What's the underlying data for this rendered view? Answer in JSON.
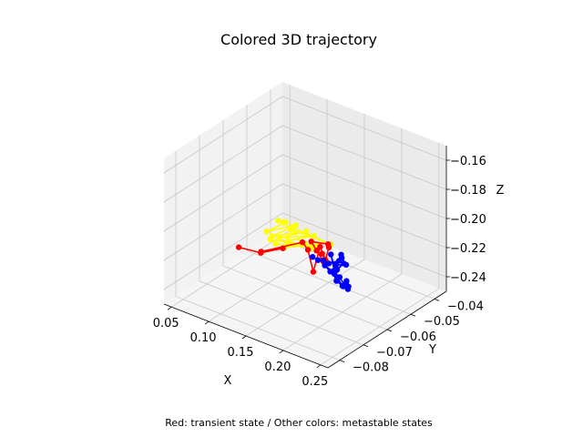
{
  "chart_data": {
    "type": "line-3d",
    "title": "Colored 3D trajectory",
    "caption": "Red: transient state / Other colors: metastable states",
    "xlabel": "X",
    "ylabel": "Y",
    "zlabel": "Z",
    "xlim": [
      0.04,
      0.26
    ],
    "ylim": [
      -0.085,
      -0.035
    ],
    "zlim": [
      -0.25,
      -0.15
    ],
    "xticks": [
      "0.05",
      "0.10",
      "0.15",
      "0.20",
      "0.25"
    ],
    "yticks": [
      "−0.08",
      "−0.07",
      "−0.06",
      "−0.05",
      "−0.04"
    ],
    "zticks": [
      "−0.24",
      "−0.22",
      "−0.20",
      "−0.18",
      "−0.16"
    ],
    "grid": true,
    "series": [
      {
        "color": "#ffff00",
        "points": [
          [
            0.05,
            -0.04,
            -0.238
          ],
          [
            0.07,
            -0.043,
            -0.232
          ],
          [
            0.06,
            -0.048,
            -0.235
          ],
          [
            0.09,
            -0.045,
            -0.228
          ],
          [
            0.08,
            -0.052,
            -0.23
          ],
          [
            0.11,
            -0.047,
            -0.226
          ],
          [
            0.1,
            -0.055,
            -0.224
          ],
          [
            0.13,
            -0.05,
            -0.222
          ],
          [
            0.12,
            -0.058,
            -0.219
          ],
          [
            0.14,
            -0.054,
            -0.224
          ],
          [
            0.15,
            -0.06,
            -0.213
          ],
          [
            0.13,
            -0.062,
            -0.217
          ],
          [
            0.16,
            -0.058,
            -0.214
          ],
          [
            0.11,
            -0.06,
            -0.221
          ],
          [
            0.09,
            -0.056,
            -0.226
          ],
          [
            0.12,
            -0.052,
            -0.228
          ],
          [
            0.1,
            -0.05,
            -0.222
          ],
          [
            0.14,
            -0.046,
            -0.23
          ],
          [
            0.08,
            -0.044,
            -0.234
          ],
          [
            0.06,
            -0.041,
            -0.236
          ]
        ]
      },
      {
        "color": "#ff0000",
        "points": [
          [
            0.08,
            -0.066,
            -0.223
          ],
          [
            0.1,
            -0.063,
            -0.226
          ],
          [
            0.12,
            -0.06,
            -0.222
          ],
          [
            0.11,
            -0.066,
            -0.22
          ],
          [
            0.14,
            -0.058,
            -0.216
          ],
          [
            0.16,
            -0.062,
            -0.213
          ],
          [
            0.18,
            -0.066,
            -0.22
          ],
          [
            0.17,
            -0.06,
            -0.211
          ],
          [
            0.19,
            -0.064,
            -0.212
          ],
          [
            0.15,
            -0.05,
            -0.226
          ],
          [
            0.13,
            -0.044,
            -0.234
          ],
          [
            0.12,
            -0.048,
            -0.23
          ],
          [
            0.14,
            -0.052,
            -0.228
          ],
          [
            0.2,
            -0.068,
            -0.207
          ],
          [
            0.21,
            -0.07,
            -0.203
          ],
          [
            0.16,
            -0.056,
            -0.222
          ]
        ]
      },
      {
        "color": "#0000ff",
        "points": [
          [
            0.16,
            -0.06,
            -0.22
          ],
          [
            0.18,
            -0.064,
            -0.214
          ],
          [
            0.2,
            -0.068,
            -0.206
          ],
          [
            0.22,
            -0.072,
            -0.2
          ],
          [
            0.24,
            -0.074,
            -0.192
          ],
          [
            0.23,
            -0.07,
            -0.194
          ],
          [
            0.25,
            -0.076,
            -0.186
          ],
          [
            0.24,
            -0.071,
            -0.198
          ],
          [
            0.22,
            -0.069,
            -0.204
          ],
          [
            0.21,
            -0.066,
            -0.21
          ],
          [
            0.19,
            -0.062,
            -0.222
          ],
          [
            0.17,
            -0.058,
            -0.226
          ],
          [
            0.2,
            -0.064,
            -0.218
          ],
          [
            0.22,
            -0.066,
            -0.222
          ],
          [
            0.23,
            -0.072,
            -0.21
          ],
          [
            0.21,
            -0.068,
            -0.2
          ],
          [
            0.18,
            -0.056,
            -0.234
          ],
          [
            0.2,
            -0.06,
            -0.232
          ],
          [
            0.22,
            -0.064,
            -0.226
          ],
          [
            0.24,
            -0.07,
            -0.214
          ],
          [
            0.25,
            -0.074,
            -0.204
          ],
          [
            0.23,
            -0.068,
            -0.216
          ],
          [
            0.21,
            -0.062,
            -0.228
          ],
          [
            0.19,
            -0.058,
            -0.23
          ],
          [
            0.17,
            -0.054,
            -0.236
          ],
          [
            0.19,
            -0.06,
            -0.224
          ],
          [
            0.24,
            -0.072,
            -0.196
          ],
          [
            0.25,
            -0.078,
            -0.192
          ]
        ]
      }
    ]
  }
}
